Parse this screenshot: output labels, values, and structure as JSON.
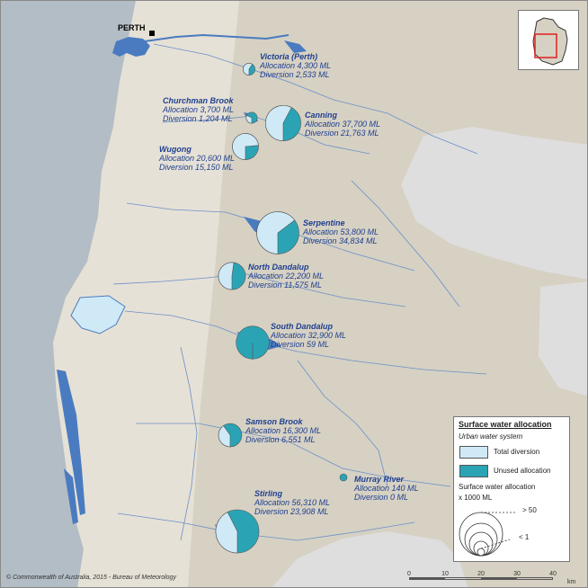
{
  "city": "PERTH",
  "copyright": "© Commonwealth of Australia, 2015 - Bureau of Meteorology",
  "colors": {
    "ocean": "#b3bdc5",
    "land": "#d6d1c3",
    "plain": "#e6e1d6",
    "grey_region": "#dedede",
    "water": "#4a7bc0",
    "total_diversion": "#cfe9f7",
    "unused_allocation": "#2aa4b5",
    "label_text": "#1f3f8f"
  },
  "sites": [
    {
      "name": "Victoria (Perth)",
      "allocation": "Allocation 4,300 ML",
      "diversion": "Diversion 2,533 ML",
      "allocation_ml": 4300,
      "diversion_ml": 2533
    },
    {
      "name": "Churchman Brook",
      "allocation": "Allocation 3,700 ML",
      "diversion": "Diversion 1,204 ML",
      "allocation_ml": 3700,
      "diversion_ml": 1204
    },
    {
      "name": "Canning",
      "allocation": "Allocation 37,700 ML",
      "diversion": "Diversion 21,763 ML",
      "allocation_ml": 37700,
      "diversion_ml": 21763
    },
    {
      "name": "Wugong",
      "allocation": "Allocation 20,600 ML",
      "diversion": "Diversion 15,150 ML",
      "allocation_ml": 20600,
      "diversion_ml": 15150
    },
    {
      "name": "Serpentine",
      "allocation": "Allocation 53,800 ML",
      "diversion": "Diversion 34,834 ML",
      "allocation_ml": 53800,
      "diversion_ml": 34834
    },
    {
      "name": "North Dandalup",
      "allocation": "Allocation 22,200 ML",
      "diversion": "Diversion 11,575 ML",
      "allocation_ml": 22200,
      "diversion_ml": 11575
    },
    {
      "name": "South Dandalup",
      "allocation": "Allocation 32,900 ML",
      "diversion": "Diversion 59 ML",
      "allocation_ml": 32900,
      "diversion_ml": 59
    },
    {
      "name": "Samson Brook",
      "allocation": "Allocation 16,300 ML",
      "diversion": "Diversion 6,551 ML",
      "allocation_ml": 16300,
      "diversion_ml": 6551
    },
    {
      "name": "Murray River",
      "allocation": "Allocation 140 ML",
      "diversion": "Diversion 0 ML",
      "allocation_ml": 140,
      "diversion_ml": 0
    },
    {
      "name": "Stirling",
      "allocation": "Allocation 56,310 ML",
      "diversion": "Diversion 23,908 ML",
      "allocation_ml": 56310,
      "diversion_ml": 23908
    }
  ],
  "legend": {
    "title": "Surface water allocation",
    "subtitle": "Urban water system",
    "total_diversion": "Total diversion",
    "unused_allocation": "Unused allocation",
    "size_title": "Surface water allocation",
    "size_units": "x 1000 ML",
    "max_label": "> 50",
    "min_label": "< 1"
  },
  "scale_bar": {
    "ticks": [
      "0",
      "10",
      "20",
      "30",
      "40"
    ],
    "unit": "km"
  }
}
